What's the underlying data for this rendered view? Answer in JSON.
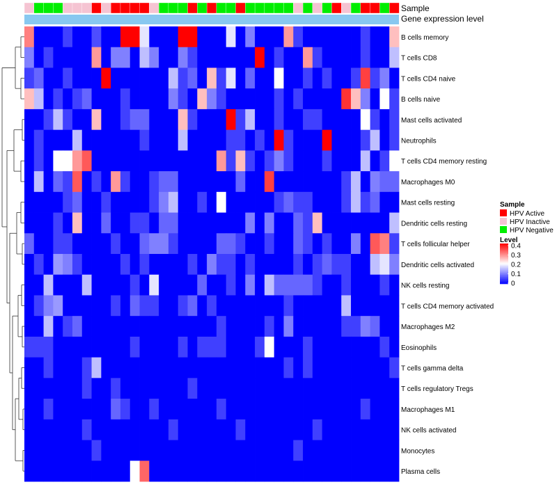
{
  "chart_data": {
    "type": "heatmap",
    "title": "",
    "annotation_labels": {
      "sample": "Sample",
      "gene": "Gene expression level"
    },
    "color_scale": {
      "title": "Level",
      "min": 0,
      "max": 0.4,
      "stops": [
        {
          "value": 0,
          "color": "#0000ff"
        },
        {
          "value": 0.2,
          "color": "#ffffff"
        },
        {
          "value": 0.4,
          "color": "#ff0000"
        }
      ],
      "ticks": [
        "0.4",
        "0.3",
        "0.2",
        "0.1",
        "0"
      ]
    },
    "sample_legend": {
      "title": "Sample",
      "entries": [
        {
          "label": "HPV Active",
          "color": "#ff0000"
        },
        {
          "label": "HPV Inactive",
          "color": "#f5c4d2"
        },
        {
          "label": "HPV Negative",
          "color": "#00ee00"
        }
      ]
    },
    "gene_bar_color": "#88c8f0",
    "sample_groups": [
      "HPV Inactive",
      "HPV Negative",
      "HPV Negative",
      "HPV Negative",
      "HPV Inactive",
      "HPV Inactive",
      "HPV Inactive",
      "HPV Active",
      "HPV Inactive",
      "HPV Active",
      "HPV Active",
      "HPV Active",
      "HPV Active",
      "HPV Inactive",
      "HPV Negative",
      "HPV Negative",
      "HPV Negative",
      "HPV Active",
      "HPV Negative",
      "HPV Active",
      "HPV Negative",
      "HPV Negative",
      "HPV Active",
      "HPV Negative",
      "HPV Negative",
      "HPV Negative",
      "HPV Negative",
      "HPV Negative",
      "HPV Inactive",
      "HPV Negative",
      "HPV Inactive",
      "HPV Negative",
      "HPV Active",
      "HPV Inactive",
      "HPV Negative",
      "HPV Active",
      "HPV Active",
      "HPV Negative",
      "HPV Active"
    ],
    "rows": [
      "B cells memory",
      "T cells CD8",
      "T cells CD4 naive",
      "B cells naive",
      "Mast cells activated",
      "Neutrophils",
      "T cells CD4 memory resting",
      "Macrophages M0",
      "Mast cells resting",
      "Dendritic cells resting",
      "T cells follicular helper",
      "Dendritic cells activated",
      "NK cells resting",
      "T cells CD4 memory activated",
      "Macrophages M2",
      "Eosinophils",
      "T cells gamma delta",
      "T cells regulatory  Tregs",
      "Macrophages M1",
      "NK cells activated",
      "Monocytes",
      "Plasma cells"
    ],
    "values": [
      [
        0.3,
        0.0,
        0.0,
        0.0,
        0.05,
        0.0,
        0.0,
        0.06,
        0.0,
        0.0,
        0.4,
        0.4,
        0.18,
        0.0,
        0.0,
        0.0,
        0.4,
        0.4,
        0.0,
        0.0,
        0.0,
        0.18,
        0.0,
        0.1,
        0.0,
        0.0,
        0.0,
        0.28,
        0.05,
        0.0,
        0.0,
        0.0,
        0.0,
        0.0,
        0.0,
        0.05,
        0.0,
        0.0,
        0.25
      ],
      [
        0.1,
        0.0,
        0.05,
        0.0,
        0.0,
        0.0,
        0.0,
        0.28,
        0.0,
        0.1,
        0.1,
        0.0,
        0.15,
        0.1,
        0.0,
        0.0,
        0.1,
        0.05,
        0.0,
        0.0,
        0.0,
        0.0,
        0.0,
        0.0,
        0.4,
        0.0,
        0.05,
        0.0,
        0.0,
        0.28,
        0.05,
        0.0,
        0.0,
        0.0,
        0.0,
        0.05,
        0.0,
        0.0,
        0.15
      ],
      [
        0.05,
        0.08,
        0.0,
        0.0,
        0.05,
        0.0,
        0.0,
        0.0,
        0.4,
        0.0,
        0.0,
        0.0,
        0.0,
        0.0,
        0.0,
        0.15,
        0.05,
        0.08,
        0.0,
        0.25,
        0.05,
        0.18,
        0.0,
        0.08,
        0.0,
        0.0,
        0.2,
        0.0,
        0.0,
        0.05,
        0.0,
        0.05,
        0.0,
        0.0,
        0.05,
        0.35,
        0.05,
        0.1,
        0.0
      ],
      [
        0.25,
        0.15,
        0.0,
        0.05,
        0.0,
        0.05,
        0.08,
        0.0,
        0.0,
        0.0,
        0.05,
        0.0,
        0.0,
        0.0,
        0.0,
        0.1,
        0.05,
        0.0,
        0.25,
        0.1,
        0.05,
        0.0,
        0.0,
        0.0,
        0.0,
        0.0,
        0.05,
        0.0,
        0.05,
        0.0,
        0.0,
        0.0,
        0.0,
        0.36,
        0.25,
        0.1,
        0.0,
        0.2,
        0.05
      ],
      [
        0.0,
        0.0,
        0.05,
        0.15,
        0.05,
        0.0,
        0.0,
        0.25,
        0.0,
        0.0,
        0.05,
        0.08,
        0.08,
        0.0,
        0.0,
        0.0,
        0.25,
        0.05,
        0.0,
        0.0,
        0.0,
        0.4,
        0.05,
        0.15,
        0.0,
        0.0,
        0.05,
        0.0,
        0.0,
        0.05,
        0.05,
        0.0,
        0.0,
        0.0,
        0.0,
        0.2,
        0.05,
        0.0,
        0.05
      ],
      [
        0.0,
        0.05,
        0.0,
        0.0,
        0.0,
        0.15,
        0.0,
        0.0,
        0.0,
        0.0,
        0.0,
        0.0,
        0.05,
        0.0,
        0.0,
        0.0,
        0.15,
        0.0,
        0.0,
        0.0,
        0.0,
        0.05,
        0.05,
        0.0,
        0.05,
        0.0,
        0.4,
        0.05,
        0.0,
        0.0,
        0.0,
        0.4,
        0.0,
        0.0,
        0.0,
        0.05,
        0.15,
        0.0,
        0.05
      ],
      [
        0.0,
        0.05,
        0.0,
        0.2,
        0.2,
        0.28,
        0.33,
        0.0,
        0.0,
        0.0,
        0.0,
        0.0,
        0.0,
        0.0,
        0.0,
        0.0,
        0.0,
        0.0,
        0.0,
        0.0,
        0.28,
        0.05,
        0.25,
        0.05,
        0.0,
        0.05,
        0.1,
        0.05,
        0.0,
        0.0,
        0.0,
        0.05,
        0.0,
        0.0,
        0.0,
        0.15,
        0.0,
        0.05,
        0.2
      ],
      [
        0.0,
        0.15,
        0.0,
        0.08,
        0.05,
        0.33,
        0.0,
        0.05,
        0.0,
        0.28,
        0.05,
        0.0,
        0.0,
        0.05,
        0.08,
        0.08,
        0.0,
        0.0,
        0.0,
        0.0,
        0.0,
        0.0,
        0.08,
        0.0,
        0.0,
        0.35,
        0.0,
        0.0,
        0.0,
        0.0,
        0.0,
        0.0,
        0.0,
        0.05,
        0.15,
        0.0,
        0.1,
        0.08,
        0.08
      ],
      [
        0.0,
        0.0,
        0.0,
        0.0,
        0.05,
        0.08,
        0.0,
        0.0,
        0.05,
        0.0,
        0.0,
        0.0,
        0.0,
        0.05,
        0.1,
        0.15,
        0.0,
        0.0,
        0.05,
        0.0,
        0.2,
        0.0,
        0.0,
        0.0,
        0.0,
        0.0,
        0.05,
        0.08,
        0.05,
        0.05,
        0.0,
        0.0,
        0.0,
        0.05,
        0.15,
        0.05,
        0.08,
        0.0,
        0.0
      ],
      [
        0.0,
        0.0,
        0.0,
        0.05,
        0.0,
        0.25,
        0.0,
        0.0,
        0.08,
        0.0,
        0.0,
        0.05,
        0.05,
        0.0,
        0.08,
        0.08,
        0.0,
        0.0,
        0.0,
        0.0,
        0.0,
        0.0,
        0.0,
        0.1,
        0.0,
        0.1,
        0.0,
        0.0,
        0.08,
        0.05,
        0.25,
        0.0,
        0.0,
        0.0,
        0.0,
        0.0,
        0.0,
        0.0,
        0.15
      ],
      [
        0.08,
        0.0,
        0.0,
        0.05,
        0.05,
        0.0,
        0.0,
        0.0,
        0.0,
        0.05,
        0.0,
        0.0,
        0.08,
        0.1,
        0.1,
        0.05,
        0.0,
        0.0,
        0.0,
        0.0,
        0.08,
        0.08,
        0.05,
        0.0,
        0.0,
        0.05,
        0.0,
        0.0,
        0.08,
        0.05,
        0.0,
        0.05,
        0.0,
        0.0,
        0.1,
        0.0,
        0.33,
        0.3,
        0.05
      ],
      [
        0.0,
        0.05,
        0.0,
        0.12,
        0.1,
        0.05,
        0.0,
        0.0,
        0.0,
        0.0,
        0.05,
        0.0,
        0.05,
        0.0,
        0.0,
        0.0,
        0.0,
        0.05,
        0.0,
        0.1,
        0.05,
        0.05,
        0.0,
        0.05,
        0.0,
        0.0,
        0.0,
        0.0,
        0.05,
        0.0,
        0.05,
        0.08,
        0.05,
        0.05,
        0.0,
        0.0,
        0.15,
        0.18,
        0.1
      ],
      [
        0.0,
        0.0,
        0.15,
        0.0,
        0.0,
        0.0,
        0.15,
        0.0,
        0.0,
        0.0,
        0.0,
        0.05,
        0.0,
        0.18,
        0.0,
        0.0,
        0.0,
        0.0,
        0.08,
        0.0,
        0.0,
        0.05,
        0.0,
        0.1,
        0.0,
        0.15,
        0.08,
        0.08,
        0.08,
        0.08,
        0.05,
        0.0,
        0.0,
        0.05,
        0.0,
        0.0,
        0.0,
        0.05,
        0.0
      ],
      [
        0.0,
        0.05,
        0.1,
        0.12,
        0.0,
        0.0,
        0.0,
        0.0,
        0.0,
        0.05,
        0.0,
        0.08,
        0.05,
        0.05,
        0.0,
        0.0,
        0.05,
        0.08,
        0.0,
        0.05,
        0.0,
        0.0,
        0.0,
        0.0,
        0.0,
        0.0,
        0.0,
        0.05,
        0.0,
        0.0,
        0.0,
        0.0,
        0.0,
        0.15,
        0.0,
        0.0,
        0.0,
        0.0,
        0.0
      ],
      [
        0.0,
        0.0,
        0.15,
        0.0,
        0.05,
        0.08,
        0.0,
        0.0,
        0.0,
        0.0,
        0.0,
        0.0,
        0.0,
        0.0,
        0.0,
        0.0,
        0.0,
        0.0,
        0.0,
        0.0,
        0.05,
        0.0,
        0.0,
        0.0,
        0.0,
        0.05,
        0.0,
        0.1,
        0.0,
        0.0,
        0.0,
        0.0,
        0.0,
        0.05,
        0.05,
        0.1,
        0.08,
        0.0,
        0.0
      ],
      [
        0.05,
        0.05,
        0.05,
        0.0,
        0.0,
        0.0,
        0.0,
        0.0,
        0.0,
        0.0,
        0.0,
        0.05,
        0.0,
        0.0,
        0.0,
        0.0,
        0.05,
        0.0,
        0.05,
        0.05,
        0.05,
        0.0,
        0.0,
        0.0,
        0.05,
        0.2,
        0.0,
        0.0,
        0.0,
        0.05,
        0.0,
        0.0,
        0.0,
        0.0,
        0.0,
        0.0,
        0.0,
        0.05,
        0.0
      ],
      [
        0.0,
        0.0,
        0.05,
        0.0,
        0.0,
        0.0,
        0.05,
        0.15,
        0.0,
        0.0,
        0.0,
        0.0,
        0.0,
        0.0,
        0.0,
        0.0,
        0.0,
        0.0,
        0.0,
        0.0,
        0.0,
        0.0,
        0.0,
        0.0,
        0.0,
        0.0,
        0.0,
        0.05,
        0.0,
        0.05,
        0.0,
        0.0,
        0.0,
        0.0,
        0.0,
        0.0,
        0.0,
        0.0,
        0.05
      ],
      [
        0.0,
        0.0,
        0.0,
        0.0,
        0.0,
        0.0,
        0.05,
        0.0,
        0.0,
        0.05,
        0.0,
        0.0,
        0.0,
        0.0,
        0.0,
        0.0,
        0.0,
        0.05,
        0.0,
        0.0,
        0.0,
        0.0,
        0.0,
        0.0,
        0.0,
        0.0,
        0.0,
        0.0,
        0.0,
        0.0,
        0.0,
        0.0,
        0.0,
        0.0,
        0.0,
        0.0,
        0.0,
        0.0,
        0.0
      ],
      [
        0.0,
        0.0,
        0.05,
        0.0,
        0.0,
        0.0,
        0.0,
        0.0,
        0.0,
        0.08,
        0.05,
        0.0,
        0.0,
        0.05,
        0.0,
        0.0,
        0.0,
        0.0,
        0.0,
        0.0,
        0.05,
        0.0,
        0.0,
        0.0,
        0.0,
        0.0,
        0.0,
        0.0,
        0.0,
        0.0,
        0.0,
        0.0,
        0.0,
        0.0,
        0.0,
        0.05,
        0.0,
        0.0,
        0.0
      ],
      [
        0.0,
        0.0,
        0.0,
        0.0,
        0.0,
        0.0,
        0.05,
        0.0,
        0.0,
        0.0,
        0.0,
        0.0,
        0.0,
        0.0,
        0.0,
        0.05,
        0.0,
        0.0,
        0.0,
        0.0,
        0.0,
        0.0,
        0.05,
        0.0,
        0.0,
        0.0,
        0.0,
        0.0,
        0.0,
        0.0,
        0.05,
        0.0,
        0.0,
        0.0,
        0.0,
        0.0,
        0.0,
        0.0,
        0.0
      ],
      [
        0.0,
        0.0,
        0.0,
        0.0,
        0.0,
        0.0,
        0.0,
        0.05,
        0.0,
        0.0,
        0.0,
        0.0,
        0.0,
        0.0,
        0.0,
        0.0,
        0.0,
        0.0,
        0.0,
        0.0,
        0.0,
        0.0,
        0.0,
        0.0,
        0.0,
        0.0,
        0.0,
        0.0,
        0.05,
        0.0,
        0.0,
        0.0,
        0.0,
        0.0,
        0.0,
        0.0,
        0.0,
        0.0,
        0.0
      ],
      [
        0.0,
        0.0,
        0.0,
        0.0,
        0.0,
        0.0,
        0.0,
        0.0,
        0.0,
        0.0,
        0.0,
        0.2,
        0.32,
        0.0,
        0.0,
        0.0,
        0.0,
        0.0,
        0.0,
        0.0,
        0.0,
        0.0,
        0.0,
        0.0,
        0.0,
        0.0,
        0.0,
        0.0,
        0.0,
        0.0,
        0.0,
        0.0,
        0.0,
        0.0,
        0.0,
        0.0,
        0.0,
        0.0,
        0.0
      ]
    ]
  }
}
